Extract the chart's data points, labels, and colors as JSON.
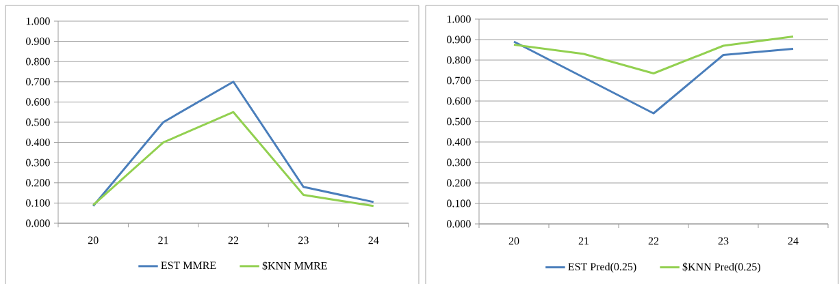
{
  "chart_data": [
    {
      "type": "line",
      "categories": [
        "20",
        "21",
        "22",
        "23",
        "24"
      ],
      "series": [
        {
          "name": "EST MMRE",
          "color": "#4a7ebb",
          "values": [
            0.085,
            0.5,
            0.7,
            0.18,
            0.105
          ]
        },
        {
          "name": "$KNN MMRE",
          "color": "#92d050",
          "values": [
            0.09,
            0.4,
            0.55,
            0.14,
            0.085
          ]
        }
      ],
      "ylim": [
        0,
        1
      ],
      "yticks": [
        {
          "value": 0,
          "label": "0.000"
        },
        {
          "value": 0.1,
          "label": "0.100"
        },
        {
          "value": 0.2,
          "label": "0.200"
        },
        {
          "value": 0.3,
          "label": "0.300"
        },
        {
          "value": 0.4,
          "label": "0.400"
        },
        {
          "value": 0.5,
          "label": "0.500"
        },
        {
          "value": 0.6,
          "label": "0.600"
        },
        {
          "value": 0.7,
          "label": "0.700"
        },
        {
          "value": 0.8,
          "label": "0.800"
        },
        {
          "value": 0.9,
          "label": "0.900"
        },
        {
          "value": 1,
          "label": "1.000"
        }
      ],
      "grid": "y",
      "legend": "bottom",
      "marker": "none",
      "line_style": "solid"
    },
    {
      "type": "line",
      "categories": [
        "20",
        "21",
        "22",
        "23",
        "24"
      ],
      "series": [
        {
          "name": "EST Pred(0.25)",
          "color": "#4a7ebb",
          "values": [
            0.89,
            0.715,
            0.54,
            0.825,
            0.855
          ]
        },
        {
          "name": "$KNN Pred(0.25)",
          "color": "#92d050",
          "values": [
            0.875,
            0.83,
            0.735,
            0.87,
            0.915
          ]
        }
      ],
      "ylim": [
        0,
        1
      ],
      "yticks": [
        {
          "value": 0,
          "label": "0.000"
        },
        {
          "value": 0.1,
          "label": "0.100"
        },
        {
          "value": 0.2,
          "label": "0.200"
        },
        {
          "value": 0.3,
          "label": "0.300"
        },
        {
          "value": 0.4,
          "label": "0.400"
        },
        {
          "value": 0.5,
          "label": "0.500"
        },
        {
          "value": 0.6,
          "label": "0.600"
        },
        {
          "value": 0.7,
          "label": "0.700"
        },
        {
          "value": 0.8,
          "label": "0.800"
        },
        {
          "value": 0.9,
          "label": "0.900"
        },
        {
          "value": 1,
          "label": "1.000"
        }
      ],
      "grid": "y",
      "legend": "bottom",
      "marker": "none",
      "line_style": "solid"
    }
  ]
}
